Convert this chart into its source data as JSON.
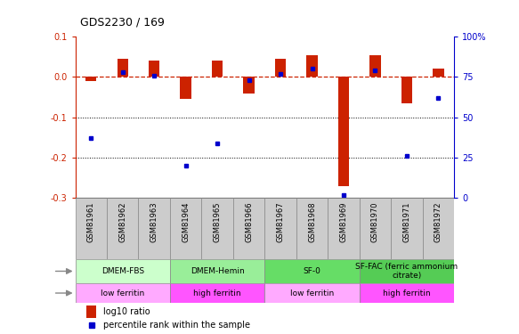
{
  "title": "GDS2230 / 169",
  "samples": [
    "GSM81961",
    "GSM81962",
    "GSM81963",
    "GSM81964",
    "GSM81965",
    "GSM81966",
    "GSM81967",
    "GSM81968",
    "GSM81969",
    "GSM81970",
    "GSM81971",
    "GSM81972"
  ],
  "log10_ratio": [
    -0.01,
    0.045,
    0.04,
    -0.055,
    0.04,
    -0.04,
    0.045,
    0.055,
    -0.27,
    0.055,
    -0.065,
    0.02
  ],
  "percentile_rank": [
    37,
    78,
    76,
    20,
    34,
    73,
    77,
    80,
    2,
    79,
    26,
    62
  ],
  "ylim_left": [
    -0.3,
    0.1
  ],
  "ylim_right": [
    0,
    100
  ],
  "bar_color": "#cc2200",
  "dot_color": "#0000cc",
  "dashed_line_color": "#cc2200",
  "bar_width": 0.35,
  "agent_groups": [
    {
      "label": "DMEM-FBS",
      "start": 0,
      "end": 3,
      "color": "#ccffcc"
    },
    {
      "label": "DMEM-Hemin",
      "start": 3,
      "end": 6,
      "color": "#99ee99"
    },
    {
      "label": "SF-0",
      "start": 6,
      "end": 9,
      "color": "#66dd66"
    },
    {
      "label": "SF-FAC (ferric ammonium\ncitrate)",
      "start": 9,
      "end": 12,
      "color": "#55cc55"
    }
  ],
  "growth_groups": [
    {
      "label": "low ferritin",
      "start": 0,
      "end": 3,
      "color": "#ffaaff"
    },
    {
      "label": "high ferritin",
      "start": 3,
      "end": 6,
      "color": "#ff55ff"
    },
    {
      "label": "low ferritin",
      "start": 6,
      "end": 9,
      "color": "#ffaaff"
    },
    {
      "label": "high ferritin",
      "start": 9,
      "end": 12,
      "color": "#ff55ff"
    }
  ],
  "legend_items": [
    {
      "label": "log10 ratio",
      "color": "#cc2200"
    },
    {
      "label": "percentile rank within the sample",
      "color": "#0000cc"
    }
  ],
  "left_ticks": [
    0.1,
    0.0,
    -0.1,
    -0.2,
    -0.3
  ],
  "right_ticks": [
    0,
    25,
    50,
    75,
    100
  ],
  "sample_label_color": "#888888",
  "sample_box_color": "#cccccc"
}
